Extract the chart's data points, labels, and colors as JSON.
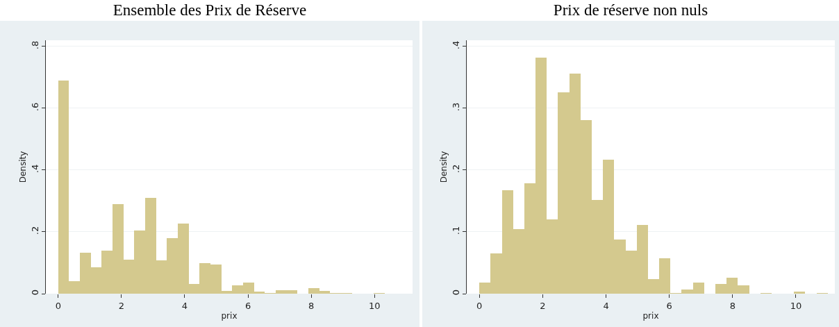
{
  "chart_data": [
    {
      "type": "histogram",
      "title": "Ensemble des Prix de Réserve",
      "xlabel": "prix",
      "ylabel": "Density",
      "color": "#d4c98e",
      "bins": [
        0,
        0.34375,
        0.6875,
        1.03125,
        1.375,
        1.71875,
        2.0625,
        2.40625,
        2.75,
        3.09375,
        3.4375,
        3.78125,
        4.125,
        4.46875,
        4.8125,
        5.15625,
        5.5,
        5.84375,
        6.1875,
        6.53125,
        6.875,
        7.21875,
        7.5625,
        7.90625,
        8.25,
        8.59375,
        8.9375,
        9.28125,
        9.625,
        9.96875,
        10.3125,
        10.65625,
        11
      ],
      "values": [
        0.689,
        0.04,
        0.132,
        0.086,
        0.14,
        0.289,
        0.111,
        0.204,
        0.309,
        0.107,
        0.18,
        0.227,
        0.031,
        0.099,
        0.094,
        0.01,
        0.027,
        0.036,
        0.006,
        0.003,
        0.012,
        0.012,
        0.001,
        0.018,
        0.009,
        0.002,
        0.002,
        0.001,
        0,
        0.002,
        0.001,
        0.001
      ],
      "xlim": [
        -0.39,
        11.2
      ],
      "xticks": [
        0,
        2,
        4,
        6,
        8,
        10
      ],
      "ylim": [
        0,
        0.82
      ],
      "yticks": [
        0,
        {
          "value": 0.2,
          "label": ".2"
        },
        {
          "value": 0.4,
          "label": ".4"
        },
        {
          "value": 0.6,
          "label": ".6"
        },
        {
          "value": 0.8,
          "label": ".8"
        }
      ],
      "grid": "y"
    },
    {
      "type": "histogram",
      "title": "Prix de réserve non nuls",
      "xlabel": "prix",
      "ylabel": "Density",
      "color": "#d4c98e",
      "bins": [
        0,
        0.355,
        0.71,
        1.065,
        1.42,
        1.775,
        2.13,
        2.485,
        2.84,
        3.195,
        3.55,
        3.905,
        4.26,
        4.615,
        4.97,
        5.325,
        5.68,
        6.035,
        6.39,
        6.745,
        7.1,
        7.455,
        7.81,
        8.165,
        8.52,
        8.875,
        9.23,
        9.585,
        9.94,
        10.295,
        10.65,
        11.005
      ],
      "values": [
        0.018,
        0.065,
        0.167,
        0.105,
        0.179,
        0.382,
        0.12,
        0.326,
        0.356,
        0.281,
        0.152,
        0.217,
        0.088,
        0.07,
        0.111,
        0.024,
        0.057,
        0.001,
        0.007,
        0.018,
        0,
        0.016,
        0.026,
        0.013,
        0,
        0.001,
        0,
        0,
        0.003,
        0,
        0.001
      ],
      "xlim": [
        -0.4,
        11.23
      ],
      "xticks": [
        0,
        2,
        4,
        6,
        8,
        10
      ],
      "ylim": [
        0,
        0.41
      ],
      "yticks": [
        0,
        {
          "value": 0.1,
          "label": ".1"
        },
        {
          "value": 0.2,
          "label": ".2"
        },
        {
          "value": 0.3,
          "label": ".3"
        },
        {
          "value": 0.4,
          "label": ".4"
        }
      ],
      "grid": "y"
    }
  ]
}
